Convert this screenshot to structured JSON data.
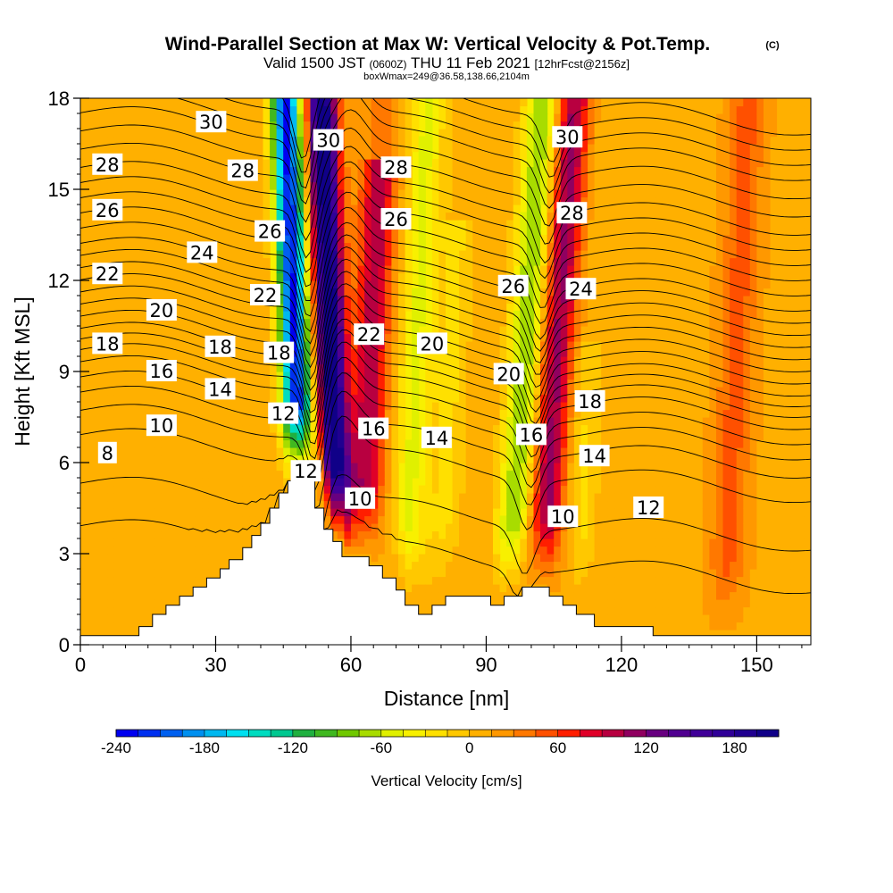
{
  "title": {
    "main": "Wind-Parallel Section at Max W: Vertical Velocity & Pot.Temp.",
    "copyright": "(C)",
    "line2_a": "Valid 1500 JST",
    "line2_b": "(0600Z)",
    "line2_c": "THU 11 Feb 2021",
    "line2_d": "[12hrFcst@2156z]",
    "line3": "boxWmax=249@36.58,138.66,2104m"
  },
  "chart_data": {
    "type": "heatmap",
    "xlabel": "Distance [nm]",
    "ylabel": "Height [Kft MSL]",
    "xlim": [
      0,
      162
    ],
    "ylim": [
      0,
      18
    ],
    "xticks": [
      0,
      30,
      60,
      90,
      120,
      150
    ],
    "yticks": [
      0,
      3,
      6,
      9,
      12,
      15,
      18
    ],
    "colorbar": {
      "label": "Vertical Velocity [cm/s]",
      "min": -240,
      "max": 210,
      "step": 15,
      "ticks": [
        -240,
        -180,
        -120,
        -60,
        0,
        60,
        120,
        180
      ],
      "colors": [
        "#0000f0",
        "#0030f0",
        "#0060f0",
        "#0090f0",
        "#00b8f0",
        "#00e0f0",
        "#00dcc0",
        "#00c890",
        "#20b040",
        "#40b820",
        "#70c800",
        "#a8dc00",
        "#e0f000",
        "#f8f000",
        "#ffe000",
        "#ffc800",
        "#ffb000",
        "#ff9800",
        "#ff7800",
        "#ff5000",
        "#ff1e00",
        "#e00028",
        "#b80040",
        "#900060",
        "#680080",
        "#500090",
        "#400098",
        "#300098",
        "#200090",
        "#100088"
      ]
    },
    "velocity_features": [
      {
        "x_center": 48,
        "kind": "downdraft",
        "peak": -240,
        "z_top": 18
      },
      {
        "x_center": 56,
        "kind": "updraft",
        "peak": 210,
        "z_top": 18
      },
      {
        "x_center": 64,
        "kind": "updraft",
        "peak": 90,
        "z_top": 16
      },
      {
        "x_center": 74,
        "kind": "downdraft",
        "peak": -60,
        "z_top": 18
      },
      {
        "x_center": 82,
        "kind": "downdraft",
        "peak": -30,
        "z_top": 14
      },
      {
        "x_center": 98,
        "kind": "downdraft",
        "peak": -90,
        "z_top": 18
      },
      {
        "x_center": 105,
        "kind": "updraft",
        "peak": 100,
        "z_top": 18
      },
      {
        "x_center": 112,
        "kind": "downdraft",
        "peak": -30,
        "z_top": 10
      },
      {
        "x_center": 145,
        "kind": "updraft",
        "peak": 40,
        "z_top": 18
      }
    ],
    "terrain": [
      [
        0,
        0.3
      ],
      [
        10,
        0.3
      ],
      [
        13,
        0.3
      ],
      [
        13,
        0.6
      ],
      [
        16,
        0.6
      ],
      [
        16,
        1.0
      ],
      [
        19,
        1.0
      ],
      [
        19,
        1.3
      ],
      [
        22,
        1.3
      ],
      [
        22,
        1.6
      ],
      [
        25,
        1.6
      ],
      [
        25,
        1.9
      ],
      [
        28,
        1.9
      ],
      [
        28,
        2.2
      ],
      [
        31,
        2.2
      ],
      [
        31,
        2.5
      ],
      [
        33,
        2.5
      ],
      [
        33,
        2.8
      ],
      [
        36,
        2.8
      ],
      [
        36,
        3.2
      ],
      [
        38,
        3.2
      ],
      [
        38,
        3.6
      ],
      [
        40,
        3.6
      ],
      [
        40,
        4.0
      ],
      [
        42,
        4.0
      ],
      [
        42,
        4.5
      ],
      [
        44,
        4.5
      ],
      [
        44,
        5.0
      ],
      [
        46,
        5.0
      ],
      [
        46,
        5.4
      ],
      [
        52,
        5.4
      ],
      [
        52,
        4.5
      ],
      [
        54,
        4.5
      ],
      [
        54,
        3.8
      ],
      [
        56,
        3.8
      ],
      [
        56,
        3.4
      ],
      [
        58,
        3.4
      ],
      [
        58,
        2.9
      ],
      [
        64,
        2.9
      ],
      [
        64,
        2.6
      ],
      [
        67,
        2.6
      ],
      [
        67,
        2.2
      ],
      [
        70,
        2.2
      ],
      [
        70,
        1.8
      ],
      [
        72,
        1.8
      ],
      [
        72,
        1.3
      ],
      [
        75,
        1.3
      ],
      [
        75,
        1.0
      ],
      [
        78,
        1.0
      ],
      [
        78,
        1.3
      ],
      [
        81,
        1.3
      ],
      [
        81,
        1.6
      ],
      [
        91,
        1.6
      ],
      [
        91,
        1.3
      ],
      [
        94,
        1.3
      ],
      [
        94,
        1.6
      ],
      [
        98,
        1.6
      ],
      [
        98,
        1.9
      ],
      [
        104,
        1.9
      ],
      [
        104,
        1.6
      ],
      [
        107,
        1.6
      ],
      [
        107,
        1.3
      ],
      [
        110,
        1.3
      ],
      [
        110,
        1.0
      ],
      [
        114,
        1.0
      ],
      [
        114,
        0.6
      ],
      [
        127,
        0.6
      ],
      [
        127,
        0.3
      ],
      [
        162,
        0.3
      ]
    ],
    "isentropes": {
      "levels": [
        4,
        6,
        8,
        9,
        10,
        11,
        12,
        13,
        14,
        15,
        16,
        17,
        18,
        19,
        20,
        21,
        22,
        23,
        24,
        25,
        26,
        27,
        28,
        29,
        30,
        31,
        32,
        33
      ],
      "base_heights": [
        3.2,
        4.6,
        6.2,
        7.0,
        7.6,
        8.1,
        8.6,
        9.0,
        9.35,
        9.7,
        10.1,
        10.5,
        10.9,
        11.3,
        11.7,
        12.1,
        12.5,
        13.0,
        13.5,
        14.0,
        14.5,
        15.0,
        15.6,
        16.2,
        16.8,
        17.3,
        17.8,
        18.3
      ]
    },
    "contour_labels": [
      {
        "text": "30",
        "x": 29,
        "z": 17.2
      },
      {
        "text": "30",
        "x": 55,
        "z": 16.6
      },
      {
        "text": "30",
        "x": 108,
        "z": 16.7
      },
      {
        "text": "28",
        "x": 6,
        "z": 15.8
      },
      {
        "text": "28",
        "x": 36,
        "z": 15.6
      },
      {
        "text": "28",
        "x": 70,
        "z": 15.7
      },
      {
        "text": "28",
        "x": 109,
        "z": 14.2
      },
      {
        "text": "26",
        "x": 6,
        "z": 14.3
      },
      {
        "text": "26",
        "x": 42,
        "z": 13.6
      },
      {
        "text": "26",
        "x": 70,
        "z": 14.0
      },
      {
        "text": "26",
        "x": 96,
        "z": 11.8
      },
      {
        "text": "24",
        "x": 27,
        "z": 12.9
      },
      {
        "text": "24",
        "x": 111,
        "z": 11.7
      },
      {
        "text": "22",
        "x": 6,
        "z": 12.2
      },
      {
        "text": "22",
        "x": 41,
        "z": 11.5
      },
      {
        "text": "22",
        "x": 64,
        "z": 10.2
      },
      {
        "text": "20",
        "x": 18,
        "z": 11.0
      },
      {
        "text": "20",
        "x": 78,
        "z": 9.9
      },
      {
        "text": "20",
        "x": 95,
        "z": 8.9
      },
      {
        "text": "18",
        "x": 6,
        "z": 9.9
      },
      {
        "text": "18",
        "x": 31,
        "z": 9.8
      },
      {
        "text": "18",
        "x": 44,
        "z": 9.6
      },
      {
        "text": "18",
        "x": 113,
        "z": 8.0
      },
      {
        "text": "16",
        "x": 18,
        "z": 9.0
      },
      {
        "text": "16",
        "x": 65,
        "z": 7.1
      },
      {
        "text": "16",
        "x": 100,
        "z": 6.9
      },
      {
        "text": "14",
        "x": 31,
        "z": 8.4
      },
      {
        "text": "14",
        "x": 79,
        "z": 6.8
      },
      {
        "text": "14",
        "x": 114,
        "z": 6.2
      },
      {
        "text": "12",
        "x": 45,
        "z": 7.6
      },
      {
        "text": "12",
        "x": 50,
        "z": 5.7
      },
      {
        "text": "12",
        "x": 126,
        "z": 4.5
      },
      {
        "text": "10",
        "x": 18,
        "z": 7.2
      },
      {
        "text": "10",
        "x": 62,
        "z": 4.8
      },
      {
        "text": "10",
        "x": 107,
        "z": 4.2
      },
      {
        "text": "8",
        "x": 6,
        "z": 6.3
      }
    ]
  }
}
